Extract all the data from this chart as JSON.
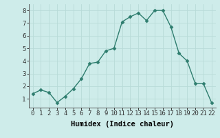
{
  "x": [
    0,
    1,
    2,
    3,
    4,
    5,
    6,
    7,
    8,
    9,
    10,
    11,
    12,
    13,
    14,
    15,
    16,
    17,
    18,
    19,
    20,
    21,
    22
  ],
  "y": [
    1.4,
    1.7,
    1.5,
    0.7,
    1.2,
    1.8,
    2.6,
    3.8,
    3.9,
    4.8,
    5.0,
    7.1,
    7.5,
    7.8,
    7.2,
    8.0,
    8.0,
    6.7,
    4.6,
    4.0,
    2.2,
    2.2,
    0.7
  ],
  "line_color": "#2e7d6e",
  "marker": "D",
  "marker_size": 2.5,
  "bg_color": "#ceecea",
  "grid_color": "#b8dbd8",
  "xlabel": "Humidex (Indice chaleur)",
  "xlabel_fontsize": 7.5,
  "tick_fontsize": 6.5,
  "ylim": [
    0.3,
    8.5
  ],
  "xlim": [
    -0.5,
    22.5
  ],
  "yticks": [
    1,
    2,
    3,
    4,
    5,
    6,
    7,
    8
  ],
  "xticks": [
    0,
    1,
    2,
    3,
    4,
    5,
    6,
    7,
    8,
    9,
    10,
    11,
    12,
    13,
    14,
    15,
    16,
    17,
    18,
    19,
    20,
    21,
    22
  ],
  "linewidth": 1.0
}
